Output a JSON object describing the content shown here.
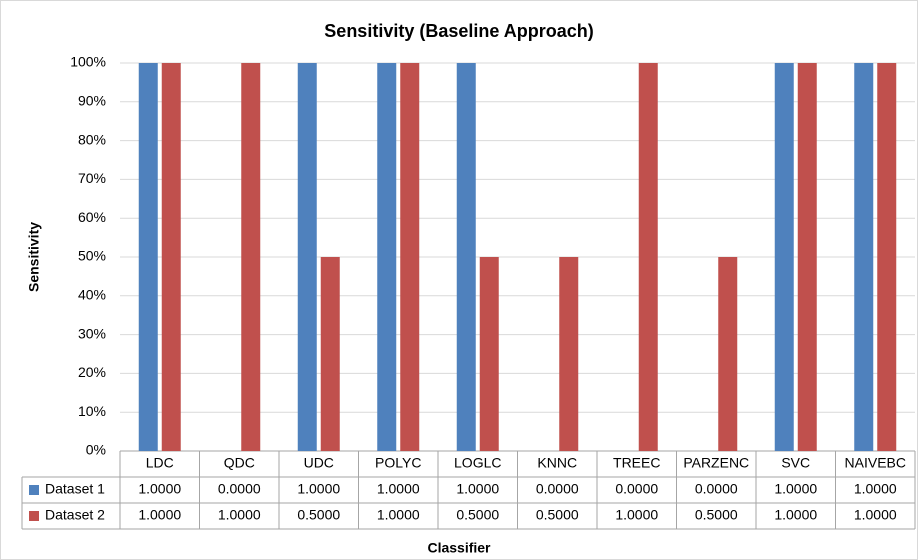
{
  "chart_data": {
    "type": "bar",
    "title": "Sensitivity (Baseline Approach)",
    "x_label": "Classifier",
    "y_label": "Sensitivity",
    "categories": [
      "LDC",
      "QDC",
      "UDC",
      "POLYC",
      "LOGLC",
      "KNNC",
      "TREEC",
      "PARZENC",
      "SVC",
      "NAIVEBC"
    ],
    "series": [
      {
        "name": "Dataset 1",
        "color": "#4f81bd",
        "values": [
          100,
          0,
          100,
          100,
          100,
          0,
          0,
          0,
          100,
          100
        ],
        "value_labels": [
          "1.0000",
          "0.0000",
          "1.0000",
          "1.0000",
          "1.0000",
          "0.0000",
          "0.0000",
          "0.0000",
          "1.0000",
          "1.0000"
        ]
      },
      {
        "name": "Dataset 2",
        "color": "#c0504d",
        "values": [
          100,
          100,
          50,
          100,
          50,
          50,
          100,
          50,
          100,
          100
        ],
        "value_labels": [
          "1.0000",
          "1.0000",
          "0.5000",
          "1.0000",
          "0.5000",
          "0.5000",
          "1.0000",
          "0.5000",
          "1.0000",
          "1.0000"
        ]
      }
    ],
    "ylim": [
      0,
      100
    ],
    "yticks": [
      {
        "value": 0,
        "label": "0%"
      },
      {
        "value": 10,
        "label": "10%"
      },
      {
        "value": 20,
        "label": "20%"
      },
      {
        "value": 30,
        "label": "30%"
      },
      {
        "value": 40,
        "label": "40%"
      },
      {
        "value": 50,
        "label": "50%"
      },
      {
        "value": 60,
        "label": "60%"
      },
      {
        "value": 70,
        "label": "70%"
      },
      {
        "value": 80,
        "label": "80%"
      },
      {
        "value": 90,
        "label": "90%"
      },
      {
        "value": 100,
        "label": "100%"
      }
    ],
    "grid": true
  }
}
